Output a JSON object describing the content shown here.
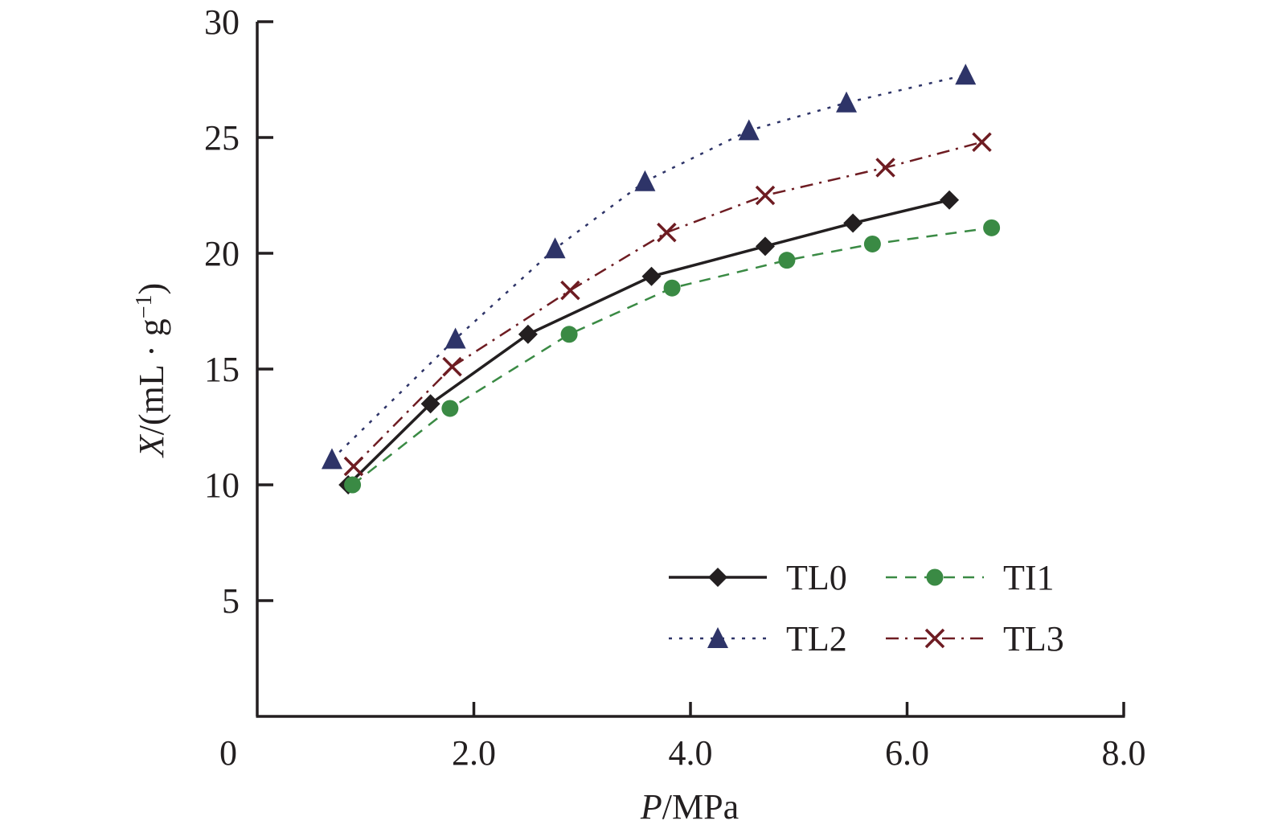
{
  "chart_data": {
    "type": "line",
    "title": "",
    "xlabel": {
      "italic": "P",
      "rest": "/MPa"
    },
    "ylabel": {
      "italic": "X",
      "rest": "/(mL · g",
      "sup": "−1",
      "close": ")"
    },
    "xlim": [
      0,
      8
    ],
    "ylim": [
      0,
      30
    ],
    "xticks": [
      0,
      2,
      4,
      6,
      8
    ],
    "xtick_labels": [
      "0",
      "2.0",
      "4.0",
      "6.0",
      "8.0"
    ],
    "yticks": [
      5,
      10,
      15,
      20,
      25,
      30
    ],
    "ytick_labels": [
      "5",
      "10",
      "15",
      "20",
      "25",
      "30"
    ],
    "grid": false,
    "legend_position": "bottom-right",
    "series": [
      {
        "name": "TL0",
        "color": "#231f20",
        "marker": "diamond",
        "line": "solid",
        "x": [
          0.84,
          1.6,
          2.5,
          3.64,
          4.69,
          5.5,
          6.39
        ],
        "y": [
          10.0,
          13.5,
          16.5,
          19.0,
          20.3,
          21.3,
          22.3
        ]
      },
      {
        "name": "TI1",
        "color": "#3a8a44",
        "marker": "circle",
        "line": "dashed",
        "x": [
          0.88,
          1.78,
          2.88,
          3.83,
          4.89,
          5.68,
          6.78
        ],
        "y": [
          10.0,
          13.3,
          16.5,
          18.5,
          19.7,
          20.4,
          21.1
        ]
      },
      {
        "name": "TL2",
        "color": "#2e3468",
        "marker": "triangle",
        "line": "dotted",
        "x": [
          0.69,
          1.83,
          2.75,
          3.58,
          4.54,
          5.44,
          6.54
        ],
        "y": [
          11.1,
          16.3,
          20.2,
          23.1,
          25.3,
          26.5,
          27.7
        ]
      },
      {
        "name": "TL3",
        "color": "#6e1c22",
        "marker": "x",
        "line": "dashdot",
        "x": [
          0.89,
          1.8,
          2.89,
          3.78,
          4.69,
          5.8,
          6.69
        ],
        "y": [
          10.8,
          15.1,
          18.4,
          20.9,
          22.5,
          23.7,
          24.8
        ]
      }
    ]
  }
}
